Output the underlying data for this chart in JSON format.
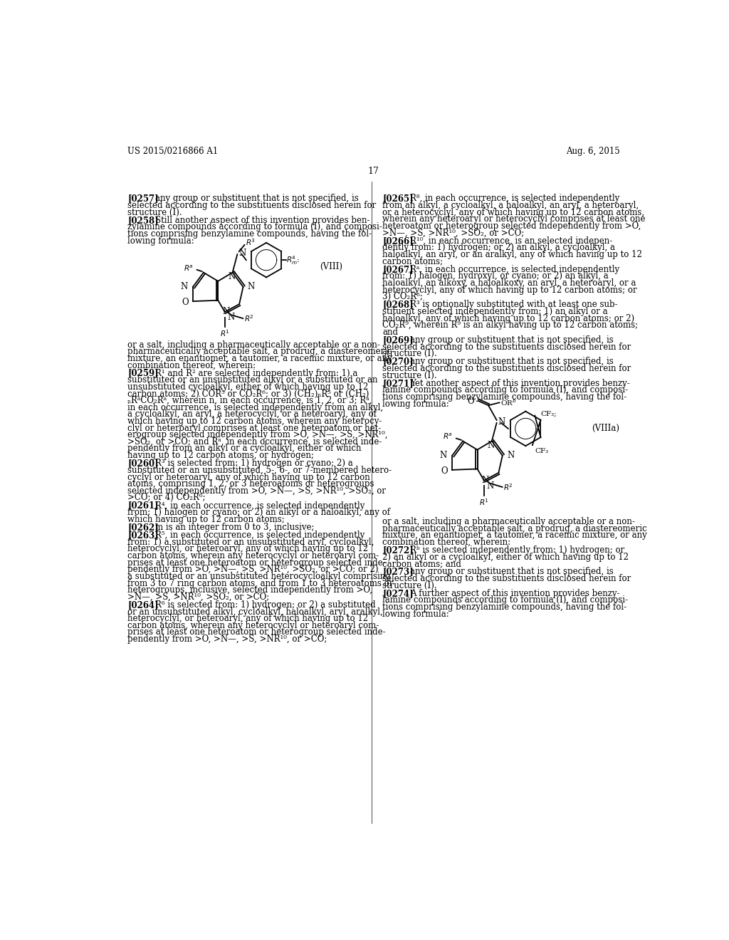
{
  "bg_color": "#ffffff",
  "header_left": "US 2015/0216866 A1",
  "header_right": "Aug. 6, 2015",
  "page_number": "17"
}
